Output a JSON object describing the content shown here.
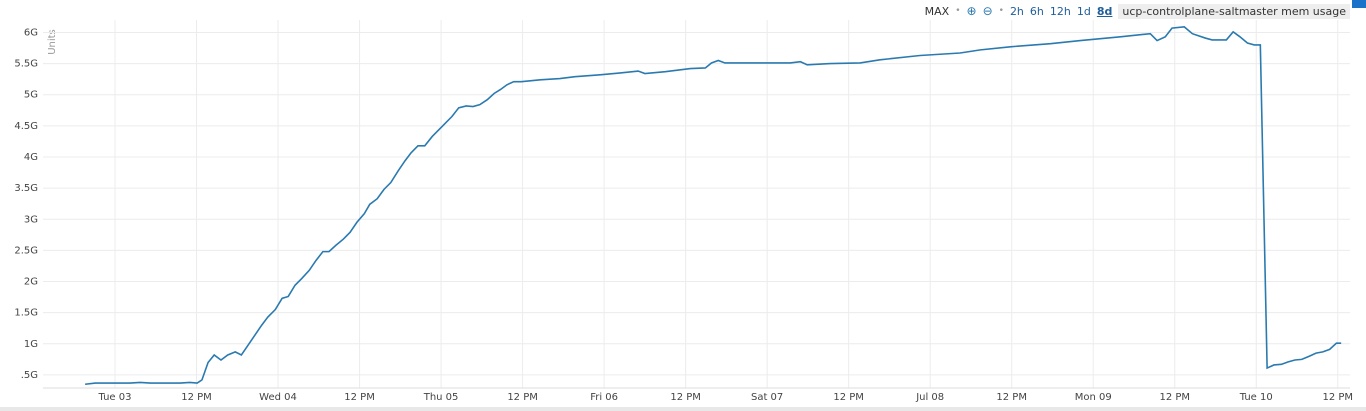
{
  "header": {
    "aggregate": "MAX",
    "separator": "•",
    "zoom_in": "⊕",
    "zoom_out": "⊖",
    "ranges": [
      "2h",
      "6h",
      "12h",
      "1d",
      "8d"
    ]
  },
  "chart_data": {
    "type": "line",
    "y_label": "Units",
    "x": [
      -4.4,
      -2.9,
      -0.7,
      2.2,
      3.7,
      5.2,
      7.4,
      9.6,
      11.0,
      12.1,
      12.8,
      13.7,
      14.6,
      15.6,
      16.6,
      17.7,
      18.6,
      19.6,
      20.6,
      21.6,
      22.5,
      23.6,
      24.6,
      25.5,
      26.5,
      27.5,
      28.6,
      29.6,
      30.6,
      31.5,
      32.5,
      33.6,
      34.6,
      35.6,
      36.7,
      37.5,
      38.6,
      39.6,
      40.6,
      41.7,
      42.7,
      43.6,
      44.6,
      45.6,
      46.7,
      47.7,
      48.7,
      49.6,
      50.6,
      51.7,
      52.7,
      53.7,
      54.8,
      55.8,
      56.7,
      57.7,
      58.7,
      59.8,
      62.6,
      65.5,
      67.7,
      71.4,
      74.4,
      77.0,
      78.0,
      81.0,
      84.7,
      86.9,
      87.8,
      88.8,
      89.8,
      92.0,
      95.0,
      99.4,
      100.9,
      101.9,
      105.3,
      109.7,
      112.6,
      118.5,
      124.4,
      127.4,
      131.8,
      137.7,
      142.1,
      148.0,
      152.4,
      153.4,
      154.6,
      155.6,
      157.4,
      158.6,
      160.5,
      161.5,
      163.6,
      164.6,
      165.6,
      166.7,
      167.7,
      168.6,
      169.6,
      170.6,
      171.7,
      172.7,
      173.7,
      174.7,
      175.8,
      176.8,
      177.8,
      178.8,
      179.8,
      180.5
    ],
    "series": [
      {
        "name": "ucp-controlplane-saltmaster mem usage",
        "color": "#2a7ab0",
        "values": [
          0.35,
          0.37,
          0.37,
          0.37,
          0.38,
          0.37,
          0.37,
          0.37,
          0.38,
          0.37,
          0.42,
          0.7,
          0.82,
          0.74,
          0.82,
          0.87,
          0.82,
          0.98,
          1.14,
          1.3,
          1.43,
          1.55,
          1.73,
          1.76,
          1.94,
          2.05,
          2.18,
          2.34,
          2.48,
          2.48,
          2.58,
          2.68,
          2.79,
          2.95,
          3.09,
          3.24,
          3.33,
          3.48,
          3.59,
          3.78,
          3.94,
          4.07,
          4.18,
          4.18,
          4.33,
          4.44,
          4.55,
          4.65,
          4.79,
          4.82,
          4.81,
          4.84,
          4.92,
          5.02,
          5.08,
          5.16,
          5.21,
          5.21,
          5.24,
          5.26,
          5.29,
          5.32,
          5.35,
          5.38,
          5.34,
          5.37,
          5.42,
          5.43,
          5.51,
          5.55,
          5.51,
          5.51,
          5.51,
          5.51,
          5.53,
          5.48,
          5.5,
          5.51,
          5.56,
          5.63,
          5.67,
          5.72,
          5.77,
          5.82,
          5.87,
          5.93,
          5.98,
          5.87,
          5.93,
          6.07,
          6.09,
          5.98,
          5.91,
          5.88,
          5.88,
          6.01,
          5.93,
          5.83,
          5.8,
          5.8,
          0.61,
          0.66,
          0.67,
          0.71,
          0.74,
          0.75,
          0.8,
          0.85,
          0.87,
          0.91,
          1.01,
          1.01
        ]
      }
    ],
    "xlim": [
      -10.6,
      181.8
    ],
    "ylim": [
      0.29,
      6.2
    ],
    "xticks": [
      {
        "value": 0,
        "label": "Tue 03"
      },
      {
        "value": 12,
        "label": "12 PM"
      },
      {
        "value": 24,
        "label": "Wed 04"
      },
      {
        "value": 36,
        "label": "12 PM"
      },
      {
        "value": 48,
        "label": "Thu 05"
      },
      {
        "value": 60,
        "label": "12 PM"
      },
      {
        "value": 72,
        "label": "Fri 06"
      },
      {
        "value": 84,
        "label": "12 PM"
      },
      {
        "value": 96,
        "label": "Sat 07"
      },
      {
        "value": 108,
        "label": "12 PM"
      },
      {
        "value": 120,
        "label": "Jul 08"
      },
      {
        "value": 132,
        "label": "12 PM"
      },
      {
        "value": 144,
        "label": "Mon 09"
      },
      {
        "value": 156,
        "label": "12 PM"
      },
      {
        "value": 168,
        "label": "Tue 10"
      },
      {
        "value": 180,
        "label": "12 PM"
      }
    ],
    "yticks": [
      {
        "value": 0.5,
        "label": ".5G"
      },
      {
        "value": 1,
        "label": "1G"
      },
      {
        "value": 1.5,
        "label": "1.5G"
      },
      {
        "value": 2,
        "label": "2G"
      },
      {
        "value": 2.5,
        "label": "2.5G"
      },
      {
        "value": 3,
        "label": "3G"
      },
      {
        "value": 3.5,
        "label": "3.5G"
      },
      {
        "value": 4,
        "label": "4G"
      },
      {
        "value": 4.5,
        "label": "4.5G"
      },
      {
        "value": 5,
        "label": "5G"
      },
      {
        "value": 5.5,
        "label": "5.5G"
      },
      {
        "value": 6,
        "label": "6G"
      }
    ],
    "grid": true
  }
}
